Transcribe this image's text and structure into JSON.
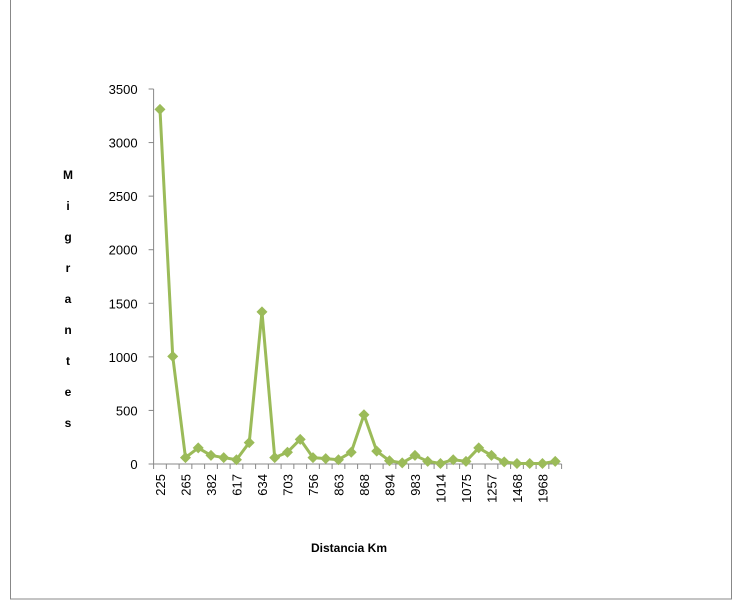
{
  "chart_data": {
    "type": "line",
    "x_label": "Distancia Km",
    "y_label": "Migrantes",
    "categories": [
      "225",
      null,
      "265",
      null,
      "382",
      null,
      "617",
      null,
      "634",
      null,
      "703",
      null,
      "756",
      null,
      "863",
      null,
      "868",
      null,
      "894",
      null,
      "983",
      null,
      "1014",
      null,
      "1075",
      null,
      "1257",
      null,
      "1468",
      null,
      "1968",
      null
    ],
    "values": [
      3310,
      1005,
      60,
      150,
      80,
      60,
      40,
      200,
      1420,
      60,
      110,
      230,
      60,
      50,
      40,
      110,
      460,
      120,
      30,
      10,
      80,
      25,
      5,
      40,
      25,
      150,
      80,
      20,
      5,
      5,
      5,
      25
    ],
    "color": "#9bbb59",
    "marker": "diamond",
    "ylim": [
      0,
      3500
    ],
    "yticks": [
      0,
      500,
      1000,
      1500,
      2000,
      2500,
      3000,
      3500
    ],
    "grid": false
  }
}
